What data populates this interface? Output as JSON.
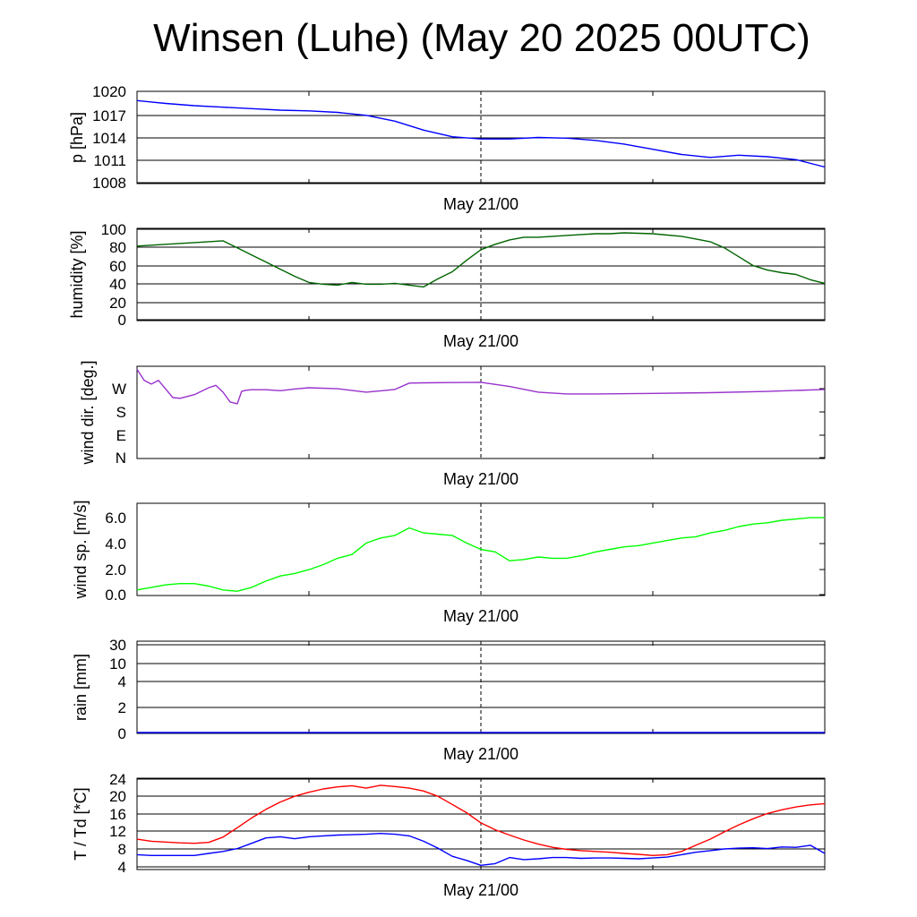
{
  "title": "Winsen (Luhe) (May 20 2025 00UTC)",
  "chart_data": [
    {
      "type": "line",
      "ylabel": "p [hPa]",
      "xlabel": "May 21/00",
      "ylim": [
        1008,
        1020
      ],
      "yticks": [
        "1020",
        "1017",
        "1014",
        "1011",
        "1008"
      ],
      "grid": true,
      "series": [
        {
          "color": "#0000ff",
          "x": [
            0,
            1,
            2,
            4,
            6,
            8,
            10,
            12,
            14,
            16,
            18,
            20,
            22,
            24,
            26,
            28,
            30,
            32,
            34,
            36,
            38,
            40,
            42,
            44,
            46,
            48
          ],
          "values": [
            1019.0,
            1018.8,
            1018.6,
            1018.3,
            1018.1,
            1017.9,
            1017.7,
            1017.6,
            1017.4,
            1017.0,
            1016.2,
            1015.0,
            1014.1,
            1013.8,
            1013.8,
            1014.0,
            1013.9,
            1013.6,
            1013.1,
            1012.4,
            1011.7,
            1011.3,
            1011.6,
            1011.4,
            1011.0,
            1010.0
          ]
        }
      ]
    },
    {
      "type": "line",
      "ylabel": "humidity [%]",
      "xlabel": "May 21/00",
      "ylim": [
        0,
        100
      ],
      "yticks": [
        "100",
        "80",
        "60",
        "40",
        "20",
        "0"
      ],
      "grid": true,
      "series": [
        {
          "color": "#006400",
          "x": [
            0,
            2,
            4,
            6,
            7,
            8,
            9,
            10,
            11,
            12,
            13,
            14,
            15,
            16,
            17,
            18,
            19,
            20,
            21,
            22,
            23,
            24,
            25,
            26,
            27,
            28,
            29,
            30,
            31,
            32,
            33,
            34,
            36,
            38,
            40,
            41,
            42,
            43,
            44,
            45,
            46,
            47,
            48
          ],
          "values": [
            82,
            84,
            86,
            88,
            80,
            72,
            64,
            56,
            48,
            41,
            39,
            38,
            41,
            39,
            39,
            40,
            38,
            36,
            45,
            53,
            66,
            78,
            84,
            89,
            92,
            92,
            93,
            94,
            95,
            96,
            96,
            97,
            96,
            93,
            87,
            80,
            70,
            60,
            55,
            52,
            50,
            44,
            40
          ]
        }
      ]
    },
    {
      "type": "line",
      "ylabel": "wind dir. [deg.]",
      "xlabel": "May 21/00",
      "ylim": [
        0,
        360
      ],
      "yticks": [
        "W",
        "S",
        "E",
        "N"
      ],
      "grid": false,
      "series": [
        {
          "color": "#9932cc",
          "x": [
            0,
            0.5,
            1,
            1.5,
            2,
            2.5,
            3,
            4,
            5,
            5.5,
            6,
            6.5,
            7,
            7.3,
            7.6,
            8,
            9,
            10,
            11,
            12,
            14,
            16,
            18,
            19,
            20,
            22,
            24,
            26,
            28,
            30,
            32,
            36,
            40,
            44,
            48
          ],
          "values": [
            355,
            310,
            295,
            310,
            275,
            240,
            237,
            252,
            280,
            290,
            262,
            222,
            215,
            265,
            270,
            272,
            272,
            268,
            275,
            280,
            276,
            262,
            273,
            299,
            300,
            301,
            302,
            285,
            262,
            255,
            255,
            257,
            260,
            265,
            273
          ]
        }
      ]
    },
    {
      "type": "line",
      "ylabel": "wind sp. [m/s]",
      "xlabel": "May 21/00",
      "ylim": [
        0,
        7
      ],
      "yticks": [
        "6.0",
        "4.0",
        "2.0",
        "0.0"
      ],
      "grid": false,
      "series": [
        {
          "color": "#00ff00",
          "x": [
            0,
            1,
            2,
            3,
            4,
            5,
            6,
            7,
            8,
            9,
            10,
            11,
            12,
            13,
            14,
            15,
            16,
            17,
            18,
            19,
            20,
            21,
            22,
            23,
            24,
            25,
            26,
            27,
            28,
            29,
            30,
            31,
            32,
            33,
            34,
            35,
            36,
            37,
            38,
            39,
            40,
            41,
            42,
            43,
            44,
            45,
            46,
            47,
            48
          ],
          "values": [
            0.3,
            0.5,
            0.7,
            0.8,
            0.8,
            0.6,
            0.3,
            0.2,
            0.5,
            1.0,
            1.4,
            1.6,
            1.9,
            2.3,
            2.8,
            3.1,
            4.0,
            4.4,
            4.6,
            5.2,
            4.8,
            4.7,
            4.6,
            4.0,
            3.5,
            3.3,
            2.6,
            2.7,
            2.9,
            2.8,
            2.8,
            3.0,
            3.3,
            3.5,
            3.7,
            3.8,
            4.0,
            4.2,
            4.4,
            4.5,
            4.8,
            5.0,
            5.3,
            5.5,
            5.6,
            5.8,
            5.9,
            6.0,
            6.0
          ]
        }
      ]
    },
    {
      "type": "line",
      "ylabel": "rain [mm]",
      "xlabel": "May 21/00",
      "yticks": [
        "30",
        "10",
        "4",
        "2",
        "0"
      ],
      "grid": true,
      "series": [
        {
          "color": "#0000ff",
          "x": [
            0,
            48
          ],
          "values": [
            0,
            0
          ]
        }
      ]
    },
    {
      "type": "line",
      "ylabel": "T / Td [*C]",
      "xlabel": "May 21/00",
      "ylim": [
        3,
        24.5
      ],
      "yticks": [
        "24",
        "20",
        "16",
        "12",
        "8",
        "4"
      ],
      "grid": true,
      "series": [
        {
          "color": "#ff0000",
          "x": [
            0,
            1,
            2,
            3,
            4,
            5,
            6,
            7,
            8,
            9,
            10,
            11,
            12,
            13,
            14,
            15,
            16,
            17,
            18,
            19,
            20,
            21,
            22,
            23,
            24,
            25,
            26,
            27,
            28,
            29,
            30,
            31,
            32,
            33,
            34,
            35,
            36,
            37,
            38,
            39,
            40,
            41,
            42,
            43,
            44,
            45,
            46,
            47,
            48
          ],
          "values": [
            10.0,
            9.5,
            9.3,
            9.1,
            9.0,
            9.2,
            10.5,
            12.8,
            15.2,
            17.3,
            19.1,
            20.5,
            21.5,
            22.3,
            22.8,
            23.1,
            22.5,
            23.2,
            22.9,
            22.5,
            21.8,
            20.5,
            18.5,
            16.5,
            14.0,
            12.3,
            11.0,
            9.8,
            8.8,
            8.0,
            7.5,
            7.2,
            7.0,
            6.8,
            6.5,
            6.3,
            6.0,
            6.2,
            7.0,
            8.5,
            10.0,
            11.8,
            13.5,
            15.0,
            16.3,
            17.2,
            17.9,
            18.4,
            18.7
          ]
        },
        {
          "color": "#0000ff",
          "x": [
            0,
            1,
            2,
            3,
            4,
            5,
            6,
            7,
            8,
            9,
            10,
            11,
            12,
            13,
            14,
            15,
            16,
            17,
            18,
            19,
            20,
            21,
            22,
            23,
            24,
            25,
            26,
            27,
            28,
            29,
            30,
            31,
            32,
            33,
            34,
            35,
            36,
            37,
            38,
            39,
            40,
            41,
            42,
            43,
            44,
            45,
            46,
            47,
            48
          ],
          "values": [
            6.2,
            6.0,
            6.0,
            6.0,
            6.0,
            6.5,
            7.0,
            7.7,
            9.0,
            10.3,
            10.6,
            10.1,
            10.6,
            10.8,
            11.0,
            11.1,
            11.2,
            11.4,
            11.2,
            10.8,
            9.5,
            7.8,
            5.8,
            4.8,
            3.6,
            4.0,
            5.5,
            5.0,
            5.2,
            5.5,
            5.5,
            5.3,
            5.4,
            5.4,
            5.3,
            5.2,
            5.4,
            5.6,
            6.2,
            6.8,
            7.2,
            7.6,
            7.8,
            7.9,
            7.7,
            8.1,
            8.0,
            8.5,
            6.5
          ]
        }
      ]
    }
  ]
}
